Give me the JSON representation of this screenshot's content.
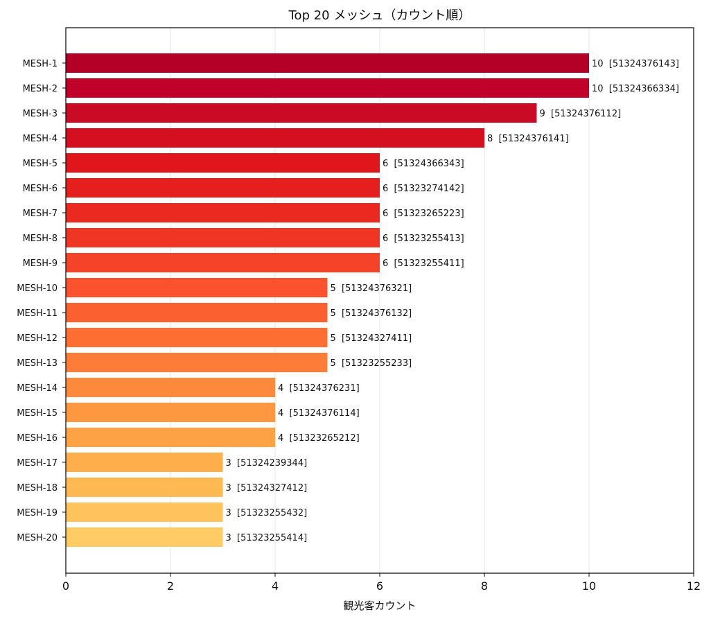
{
  "chart_data": {
    "type": "bar",
    "orientation": "horizontal",
    "title": "Top 20 メッシュ（カウント順）",
    "xlabel": "観光客カウント",
    "ylabel": "",
    "xlim": [
      0,
      12
    ],
    "xticks": [
      0,
      2,
      4,
      6,
      8,
      10,
      12
    ],
    "grid": {
      "x": true,
      "y": false
    },
    "categories": [
      "MESH-1",
      "MESH-2",
      "MESH-3",
      "MESH-4",
      "MESH-5",
      "MESH-6",
      "MESH-7",
      "MESH-8",
      "MESH-9",
      "MESH-10",
      "MESH-11",
      "MESH-12",
      "MESH-13",
      "MESH-14",
      "MESH-15",
      "MESH-16",
      "MESH-17",
      "MESH-18",
      "MESH-19",
      "MESH-20"
    ],
    "values": [
      10,
      10,
      9,
      8,
      6,
      6,
      6,
      6,
      6,
      5,
      5,
      5,
      5,
      4,
      4,
      4,
      3,
      3,
      3,
      3
    ],
    "mesh_codes": [
      "51324376143",
      "51324366334",
      "51324376112",
      "51324376141",
      "51324366343",
      "51323274142",
      "51323265223",
      "51323255413",
      "51323255411",
      "51324376321",
      "51324376132",
      "51324327411",
      "51323255233",
      "51324376231",
      "51324376114",
      "51323265212",
      "51324239344",
      "51324327412",
      "51323255432",
      "51323255414"
    ],
    "data_labels": [
      "10  [51324376143]",
      "10  [51324366334]",
      "9  [51324376112]",
      "8  [51324376141]",
      "6  [51324366343]",
      "6  [51323274142]",
      "6  [51323265223]",
      "6  [51323255413]",
      "6  [51323255411]",
      "5  [51324376321]",
      "5  [51324376132]",
      "5  [51324327411]",
      "5  [51323255233]",
      "4  [51324376231]",
      "4  [51324376114]",
      "4  [51323265212]",
      "3  [51324239344]",
      "3  [51324327412]",
      "3  [51323255432]",
      "3  [51323255414]"
    ],
    "colors": [
      "#b40026",
      "#c0022a",
      "#ca0b26",
      "#d41020",
      "#df171c",
      "#e51f1d",
      "#ea2a20",
      "#ef3624",
      "#f44328",
      "#f9522c",
      "#fb6030",
      "#fd6e33",
      "#fd7c37",
      "#fd8a3c",
      "#fd9841",
      "#fda346",
      "#feaf4b",
      "#feb953",
      "#fec35c",
      "#fecb65"
    ]
  }
}
